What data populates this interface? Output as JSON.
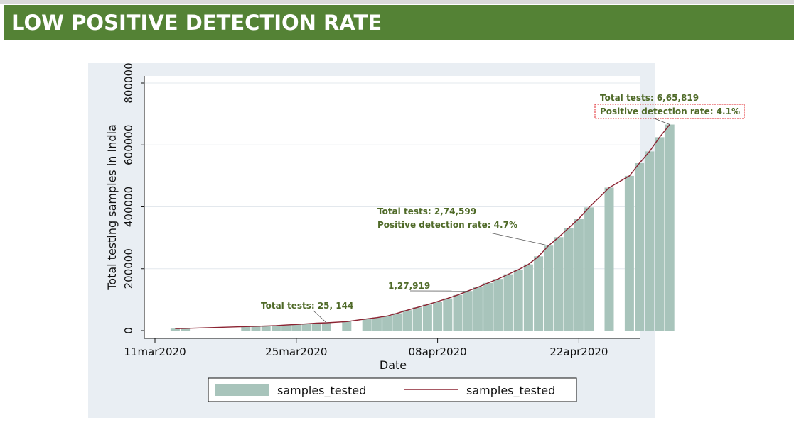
{
  "header": {
    "title": "LOW POSITIVE DETECTION RATE"
  },
  "colors": {
    "banner": "#548235",
    "bar": "#a8c4bb",
    "line": "#8b2332",
    "annotation": "#4f6a28",
    "highlight_box": "#e0262b"
  },
  "chart_data": {
    "type": "bar",
    "x_axis": {
      "label": "Date",
      "ticks": [
        "11mar2020",
        "25mar2020",
        "08apr2020",
        "22apr2020"
      ]
    },
    "y_axis": {
      "label": "Total testing samples in India",
      "ticks": [
        "0",
        "200000",
        "400000",
        "600000",
        "800000"
      ],
      "range": [
        0,
        800000
      ]
    },
    "grid": true,
    "legend": {
      "position": "bottom",
      "entries": [
        {
          "type": "bar",
          "label": "samples_tested"
        },
        {
          "type": "line",
          "label": "samples_tested"
        }
      ]
    },
    "series": [
      {
        "name": "samples_tested",
        "points": [
          [
            "2020-03-13",
            6500
          ],
          [
            "2020-03-14",
            7000
          ],
          [
            "2020-03-20",
            13000
          ],
          [
            "2020-03-21",
            14000
          ],
          [
            "2020-03-22",
            15000
          ],
          [
            "2020-03-23",
            16000
          ],
          [
            "2020-03-24",
            18000
          ],
          [
            "2020-03-25",
            20000
          ],
          [
            "2020-03-26",
            22000
          ],
          [
            "2020-03-27",
            24000
          ],
          [
            "2020-03-28",
            25144
          ],
          [
            "2020-03-30",
            29000
          ],
          [
            "2020-04-01",
            38000
          ],
          [
            "2020-04-02",
            42000
          ],
          [
            "2020-04-03",
            47000
          ],
          [
            "2020-04-04",
            56000
          ],
          [
            "2020-04-05",
            66000
          ],
          [
            "2020-04-06",
            75000
          ],
          [
            "2020-04-07",
            84000
          ],
          [
            "2020-04-08",
            94000
          ],
          [
            "2020-04-09",
            104000
          ],
          [
            "2020-04-10",
            115000
          ],
          [
            "2020-04-11",
            127919
          ],
          [
            "2020-04-12",
            140000
          ],
          [
            "2020-04-13",
            154000
          ],
          [
            "2020-04-14",
            167000
          ],
          [
            "2020-04-15",
            182000
          ],
          [
            "2020-04-16",
            197000
          ],
          [
            "2020-04-17",
            214000
          ],
          [
            "2020-04-18",
            240000
          ],
          [
            "2020-04-19",
            274599
          ],
          [
            "2020-04-20",
            302000
          ],
          [
            "2020-04-21",
            332000
          ],
          [
            "2020-04-22",
            362000
          ],
          [
            "2020-04-23",
            398000
          ],
          [
            "2020-04-25",
            462000
          ],
          [
            "2020-04-27",
            500000
          ],
          [
            "2020-04-28",
            541000
          ],
          [
            "2020-04-29",
            579000
          ],
          [
            "2020-04-30",
            625000
          ],
          [
            "2020-05-01",
            665819
          ]
        ]
      }
    ],
    "annotations": [
      {
        "lines": [
          "Total tests: 25, 144"
        ],
        "date": "2020-03-28",
        "value": 25144
      },
      {
        "lines": [
          "1,27,919"
        ],
        "date": "2020-04-11",
        "value": 127919
      },
      {
        "lines": [
          "Total tests: 2,74,599",
          "Positive detection rate: 4.7%"
        ],
        "date": "2020-04-19",
        "value": 274599
      },
      {
        "lines": [
          "Total tests: 6,65,819",
          "Positive detection rate: 4.1%"
        ],
        "date": "2020-05-01",
        "value": 665819,
        "highlighted_line": 1
      }
    ]
  }
}
